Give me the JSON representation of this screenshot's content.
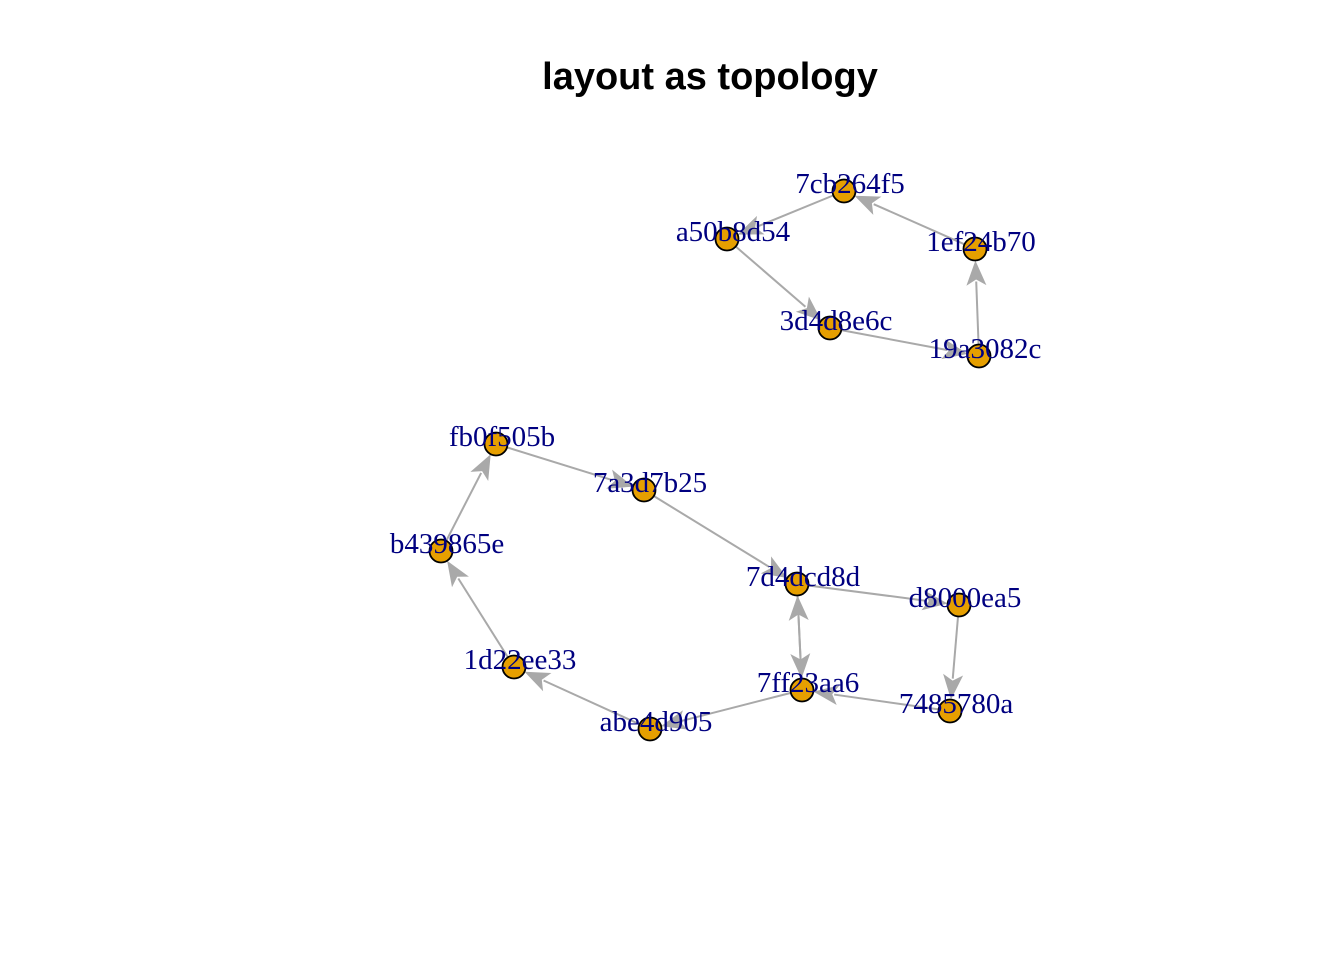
{
  "title": "layout as topology",
  "colors": {
    "node_fill": "#E69F00",
    "node_stroke": "#000000",
    "edge": "#A9A9A9",
    "label": "#000080"
  },
  "nodes": [
    {
      "id": "7cb264f5",
      "label": "7cb264f5"
    },
    {
      "id": "a50b8d54",
      "label": "a50b8d54"
    },
    {
      "id": "1ef24b70",
      "label": "1ef24b70"
    },
    {
      "id": "3d4d8e6c",
      "label": "3d4d8e6c"
    },
    {
      "id": "19a3082c",
      "label": "19a3082c"
    },
    {
      "id": "fb0f505b",
      "label": "fb0f505b"
    },
    {
      "id": "7a3d7b25",
      "label": "7a3d7b25"
    },
    {
      "id": "b439865e",
      "label": "b439865e"
    },
    {
      "id": "7d4dcd8d",
      "label": "7d4dcd8d"
    },
    {
      "id": "d8000ea5",
      "label": "d8000ea5"
    },
    {
      "id": "1d22ee33",
      "label": "1d22ee33"
    },
    {
      "id": "7ff23aa6",
      "label": "7ff23aa6"
    },
    {
      "id": "7485780a",
      "label": "7485780a"
    },
    {
      "id": "abe4d905",
      "label": "abe4d905"
    }
  ],
  "edges": [
    {
      "from": "1ef24b70",
      "to": "7cb264f5"
    },
    {
      "from": "7cb264f5",
      "to": "a50b8d54"
    },
    {
      "from": "a50b8d54",
      "to": "3d4d8e6c"
    },
    {
      "from": "3d4d8e6c",
      "to": "19a3082c"
    },
    {
      "from": "19a3082c",
      "to": "1ef24b70"
    },
    {
      "from": "fb0f505b",
      "to": "7a3d7b25"
    },
    {
      "from": "7a3d7b25",
      "to": "7d4dcd8d"
    },
    {
      "from": "7d4dcd8d",
      "to": "d8000ea5"
    },
    {
      "from": "d8000ea5",
      "to": "7485780a"
    },
    {
      "from": "7485780a",
      "to": "7ff23aa6"
    },
    {
      "from": "7ff23aa6",
      "to": "7d4dcd8d"
    },
    {
      "from": "7d4dcd8d",
      "to": "7ff23aa6"
    },
    {
      "from": "7ff23aa6",
      "to": "abe4d905"
    },
    {
      "from": "abe4d905",
      "to": "1d22ee33"
    },
    {
      "from": "1d22ee33",
      "to": "b439865e"
    },
    {
      "from": "b439865e",
      "to": "fb0f505b"
    }
  ]
}
